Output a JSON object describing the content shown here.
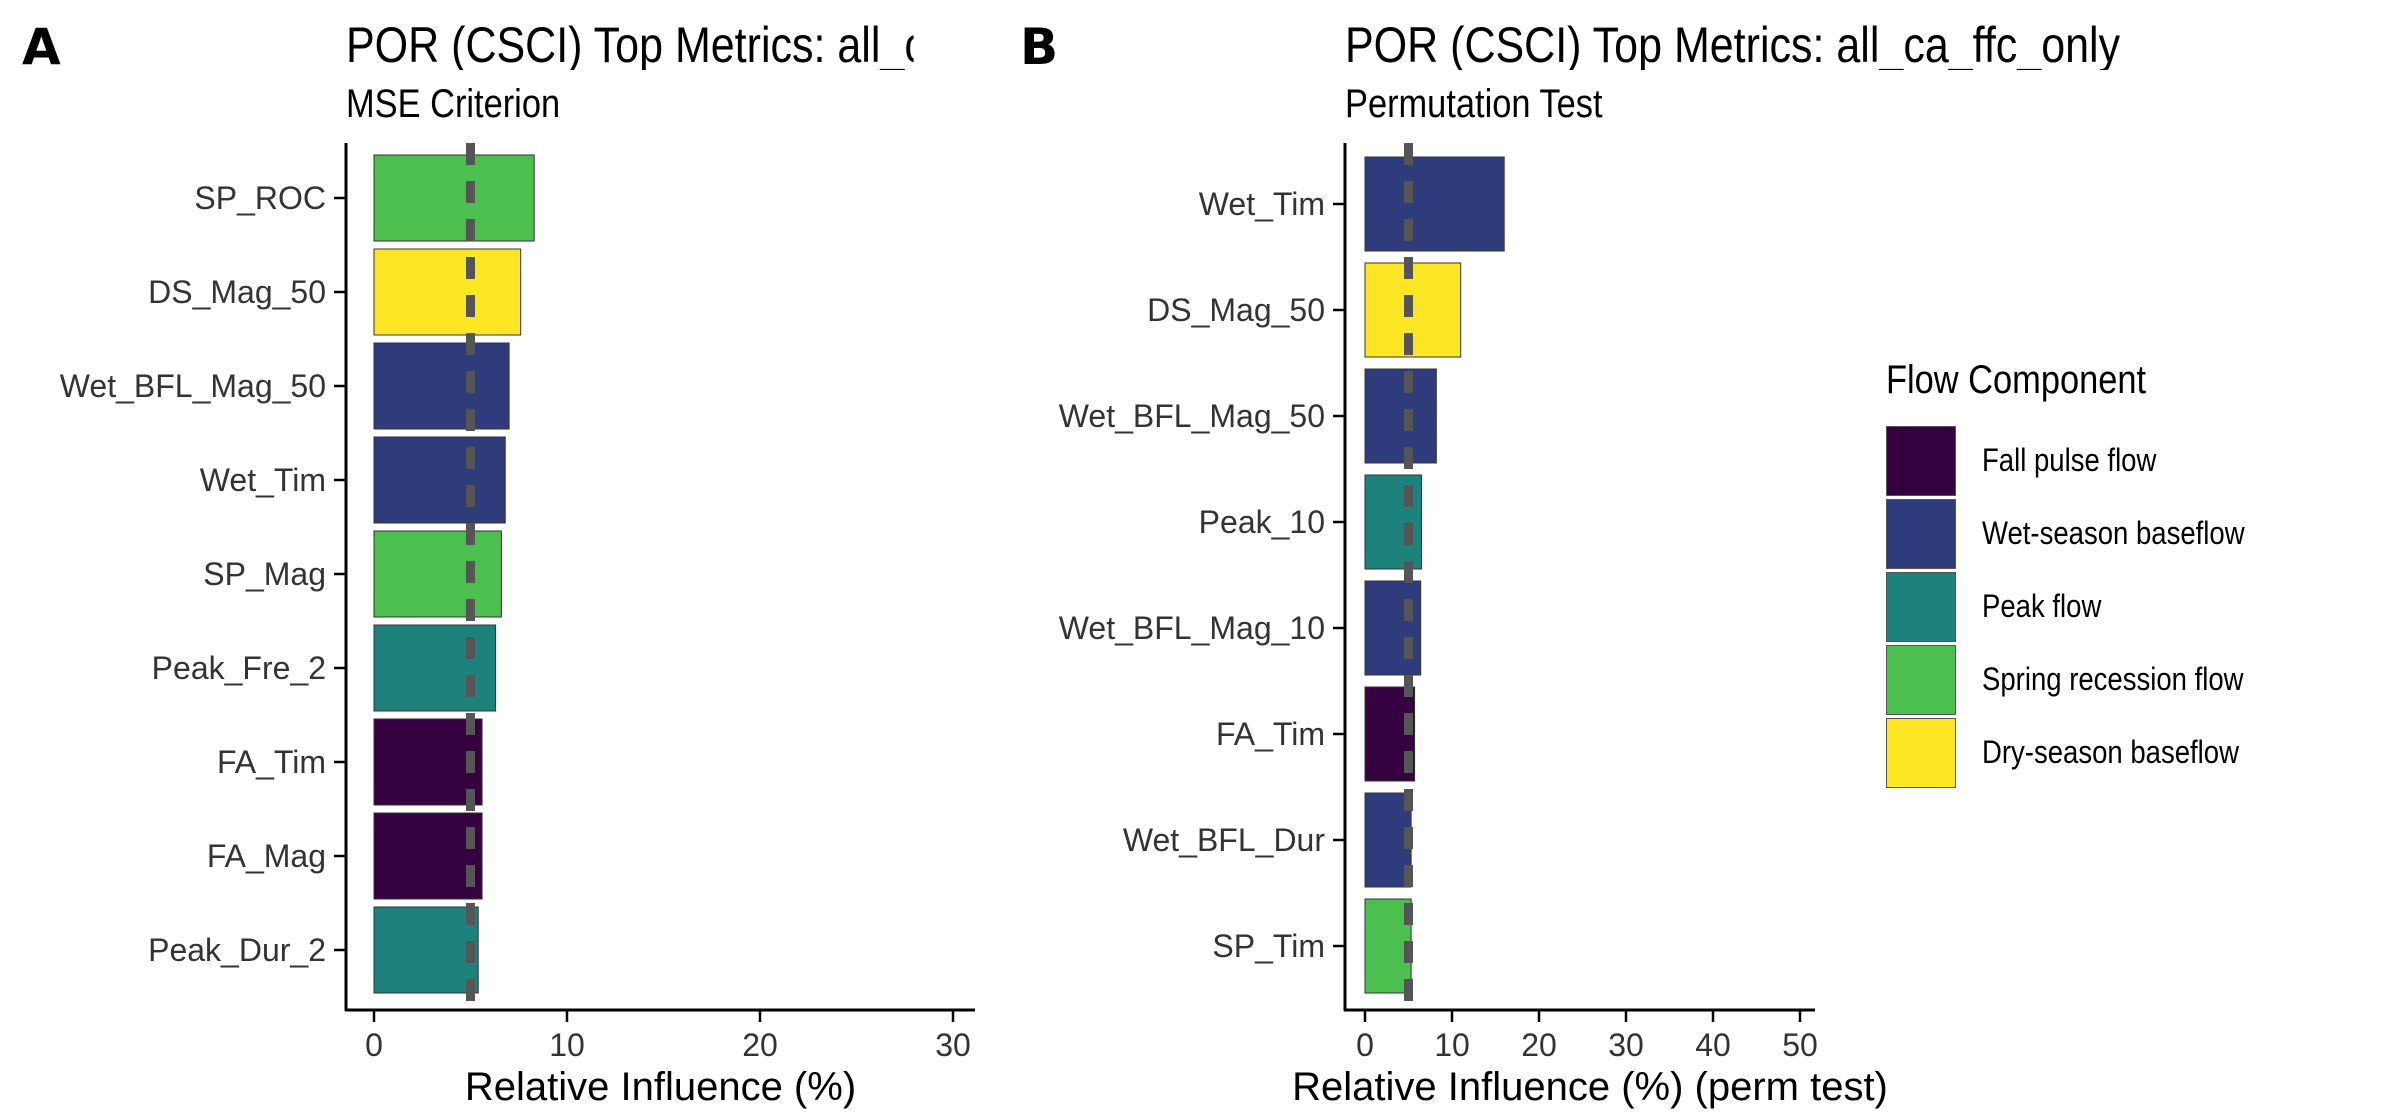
{
  "panels": [
    {
      "letter": "A",
      "title": "POR (CSCI) Top Metrics: all_ca_ffc_only",
      "subtitle": "MSE Criterion"
    },
    {
      "letter": "B",
      "title": "POR (CSCI) Top Metrics: all_ca_ffc_only",
      "subtitle": "Permutation Test"
    }
  ],
  "legend": {
    "title": "Flow Component",
    "items": [
      {
        "label": "Fall pulse flow",
        "color": "#35023F"
      },
      {
        "label": "Wet-season baseflow",
        "color": "#2E3C7C"
      },
      {
        "label": "Peak flow",
        "color": "#1D827C"
      },
      {
        "label": "Spring recession flow",
        "color": "#4CC04F"
      },
      {
        "label": "Dry-season baseflow",
        "color": "#FDE724"
      }
    ]
  },
  "chart_data": [
    {
      "type": "bar",
      "orientation": "horizontal",
      "title": "POR (CSCI) Top Metrics: all_ca_ffc_only",
      "subtitle": "MSE Criterion",
      "xlabel": "Relative Influence (%)",
      "ylabel": "",
      "xlim": [
        0,
        31
      ],
      "xticks": [
        0,
        10,
        20,
        30
      ],
      "reference_line": 5,
      "grid": false,
      "categories": [
        "SP_ROC",
        "DS_Mag_50",
        "Wet_BFL_Mag_50",
        "Wet_Tim",
        "SP_Mag",
        "Peak_Fre_2",
        "FA_Tim",
        "FA_Mag",
        "Peak_Dur_2"
      ],
      "values": [
        8.3,
        7.6,
        7.0,
        6.8,
        6.6,
        6.3,
        5.6,
        5.6,
        5.4
      ],
      "components": [
        "Spring recession flow",
        "Dry-season baseflow",
        "Wet-season baseflow",
        "Wet-season baseflow",
        "Spring recession flow",
        "Peak flow",
        "Fall pulse flow",
        "Fall pulse flow",
        "Peak flow"
      ]
    },
    {
      "type": "bar",
      "orientation": "horizontal",
      "title": "POR (CSCI) Top Metrics: all_ca_ffc_only",
      "subtitle": "Permutation Test",
      "xlabel": "Relative Influence (%) (perm test)",
      "ylabel": "",
      "xlim": [
        0,
        52
      ],
      "xticks": [
        0,
        10,
        20,
        30,
        40,
        50
      ],
      "reference_line": 5,
      "grid": false,
      "categories": [
        "Wet_Tim",
        "DS_Mag_50",
        "Wet_BFL_Mag_50",
        "Peak_10",
        "Wet_BFL_Mag_10",
        "FA_Tim",
        "Wet_BFL_Dur",
        "SP_Tim"
      ],
      "values": [
        16.0,
        11.0,
        8.2,
        6.5,
        6.4,
        5.7,
        5.3,
        5.3
      ],
      "components": [
        "Wet-season baseflow",
        "Dry-season baseflow",
        "Wet-season baseflow",
        "Peak flow",
        "Wet-season baseflow",
        "Fall pulse flow",
        "Wet-season baseflow",
        "Spring recession flow"
      ]
    }
  ]
}
